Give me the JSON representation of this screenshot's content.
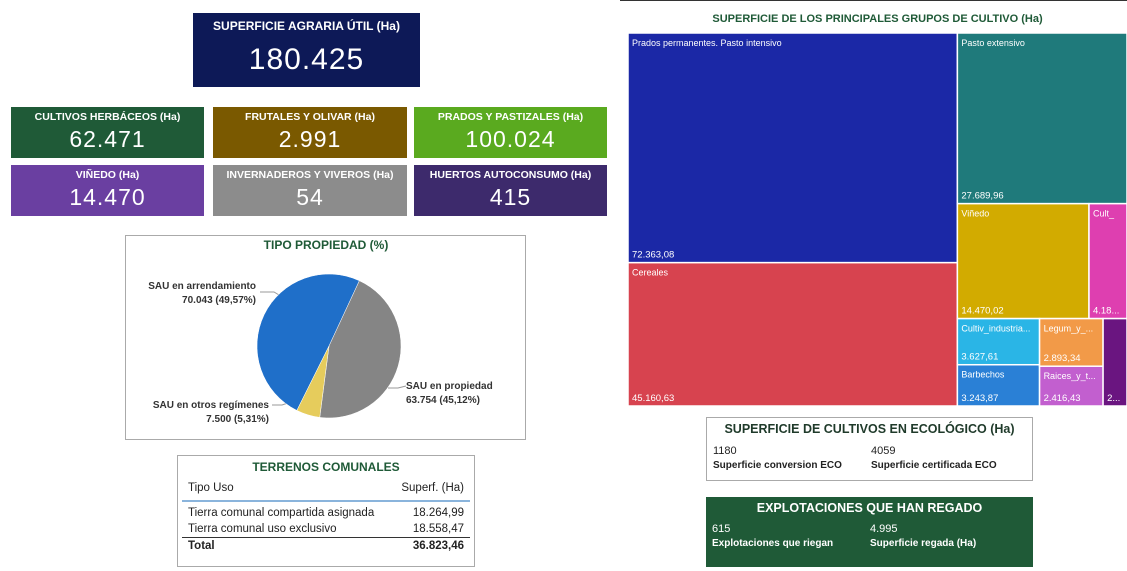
{
  "kpis": [
    {
      "title": "SUPERFICIE AGRARIA ÚTIL (Ha)",
      "value": "180.425"
    },
    {
      "title": "CULTIVOS HERBÁCEOS (Ha)",
      "value": "62.471"
    },
    {
      "title": "FRUTALES Y OLIVAR (Ha)",
      "value": "2.991"
    },
    {
      "title": "PRADOS Y PASTIZALES (Ha)",
      "value": "100.024"
    },
    {
      "title": "VIÑEDO (Ha)",
      "value": "14.470"
    },
    {
      "title": "INVERNADEROS Y VIVEROS (Ha)",
      "value": "54"
    },
    {
      "title": "HUERTOS AUTOCONSUMO (Ha)",
      "value": "415"
    }
  ],
  "chart_data": [
    {
      "type": "pie",
      "title": "TIPO PROPIEDAD (%)",
      "categories": [
        "SAU en arrendamiento",
        "SAU en propiedad",
        "SAU en otros regímenes"
      ],
      "values": [
        70043,
        63754,
        7500
      ],
      "value_labels": [
        "70.043 (49,57%)",
        "63.754 (45,12%)",
        "7.500 (5,31%)"
      ],
      "colors": [
        "#1f6fc9",
        "#858585",
        "#e6cc5c"
      ]
    },
    {
      "type": "treemap",
      "title": "SUPERFICIE DE LOS PRINCIPALES GRUPOS DE CULTIVO (Ha)",
      "categories": [
        "Prados permanentes. Pasto intensivo",
        "Cereales",
        "Pasto extensivo",
        "Viñedo",
        "Cult_",
        "Cultiv_industria...",
        "Legum_y_...",
        "Barbechos",
        "Raices_y_t...",
        null
      ],
      "values": [
        72363.08,
        45160.63,
        27689.96,
        14470.02,
        4180,
        3627.61,
        2893.34,
        3243.87,
        2416.43,
        2000
      ],
      "value_labels": [
        "72.363,08",
        "45.160,63",
        "27.689,96",
        "14.470,02",
        "4.18...",
        "3.627,61",
        "2.893,34",
        "3.243,87",
        "2.416,43",
        "2..."
      ],
      "colors": [
        "#1b28a6",
        "#d7434f",
        "#1f7a7b",
        "#d2ab00",
        "#de3fb0",
        "#2ab5e6",
        "#f29a48",
        "#2a80d6",
        "#c25fcf",
        "#6a1580"
      ]
    }
  ],
  "comunales": {
    "title": "TERRENOS COMUNALES",
    "header": [
      "Tipo Uso",
      "Superf. (Ha)"
    ],
    "rows": [
      [
        "Tierra comunal compartida asignada",
        "18.264,99"
      ],
      [
        "Tierra comunal uso exclusivo",
        "18.558,47"
      ]
    ],
    "total": [
      "Total",
      "36.823,46"
    ]
  },
  "eco": {
    "title": "SUPERFICIE DE CULTIVOS EN ECOLÓGICO (Ha)",
    "items": [
      {
        "value": "1180",
        "label": "Superficie conversion ECO"
      },
      {
        "value": "4059",
        "label": "Superficie certificada ECO"
      }
    ]
  },
  "riego": {
    "title": "EXPLOTACIONES QUE HAN REGADO",
    "items": [
      {
        "value": "615",
        "label": "Explotaciones que riegan"
      },
      {
        "value": "4.995",
        "label": "Superficie regada (Ha)"
      }
    ]
  }
}
